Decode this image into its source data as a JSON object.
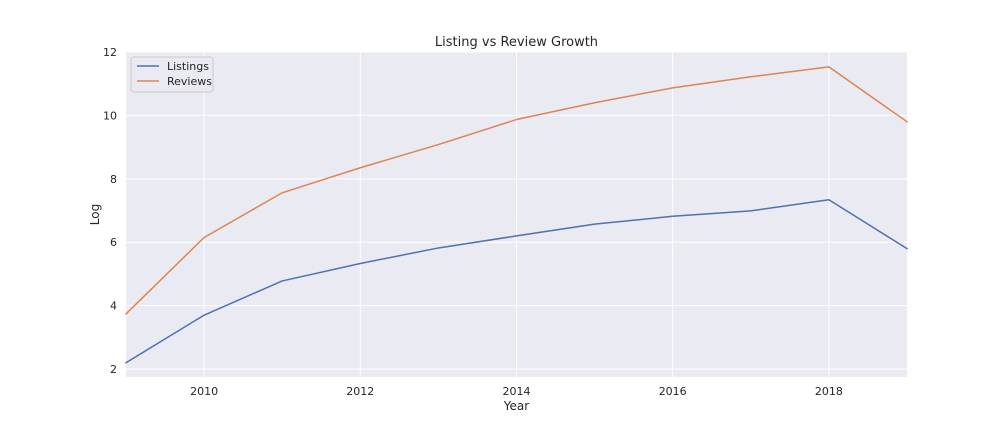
{
  "chart_data": {
    "type": "line",
    "title": "Listing vs Review Growth",
    "xlabel": "Year",
    "ylabel": "Log",
    "xlim": [
      2009,
      2019
    ],
    "ylim": [
      1.75,
      12
    ],
    "xticks": [
      2010,
      2012,
      2014,
      2016,
      2018
    ],
    "yticks": [
      2,
      4,
      6,
      8,
      10,
      12
    ],
    "grid": true,
    "legend_position": "top-left",
    "x": [
      2009,
      2010,
      2011,
      2012,
      2013,
      2014,
      2015,
      2016,
      2017,
      2018,
      2019
    ],
    "series": [
      {
        "name": "Listings",
        "color": "#4c72b0",
        "values": [
          2.2,
          3.7,
          4.78,
          5.33,
          5.82,
          6.2,
          6.57,
          6.82,
          6.99,
          7.34,
          5.8
        ]
      },
      {
        "name": "Reviews",
        "color": "#dd8452",
        "values": [
          3.74,
          6.15,
          7.56,
          8.35,
          9.08,
          9.87,
          10.4,
          10.87,
          11.22,
          11.53,
          9.8
        ]
      }
    ]
  }
}
